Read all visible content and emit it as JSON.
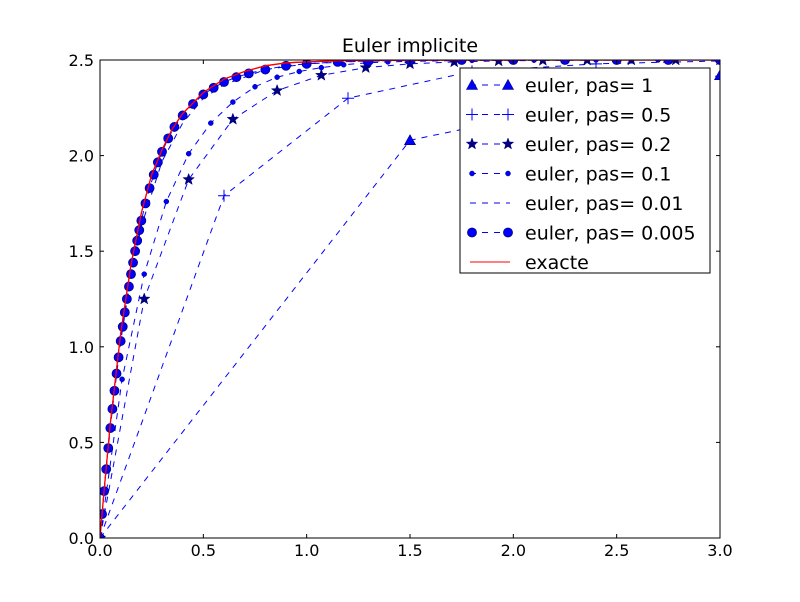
{
  "chart_data": {
    "type": "line",
    "title": "Euler implicite",
    "xlabel": "",
    "ylabel": "",
    "xlim": [
      0.0,
      3.0
    ],
    "ylim": [
      0.0,
      2.5
    ],
    "xticks": [
      "0.0",
      "0.5",
      "1.0",
      "1.5",
      "2.0",
      "2.5",
      "3.0"
    ],
    "yticks": [
      "0.0",
      "0.5",
      "1.0",
      "1.5",
      "2.0",
      "2.5"
    ],
    "grid": false,
    "legend_position": "upper-right",
    "colors": {
      "euler": "#0000ff",
      "exacte": "#ff0000",
      "dark_marker": "#000080"
    },
    "series": [
      {
        "name": "euler, pas= 1",
        "marker": "triangle",
        "linestyle": "dashed",
        "x": [
          0.0,
          1.5,
          3.0
        ],
        "y": [
          0.0,
          2.08,
          2.42
        ]
      },
      {
        "name": "euler, pas= 0.5",
        "marker": "plus",
        "linestyle": "dashed",
        "x": [
          0.0,
          0.6,
          1.2,
          1.8,
          2.4,
          3.0
        ],
        "y": [
          0.0,
          1.79,
          2.3,
          2.44,
          2.48,
          2.495
        ]
      },
      {
        "name": "euler, pas= 0.2",
        "marker": "star",
        "linestyle": "dashed",
        "x": [
          0.0,
          0.214,
          0.429,
          0.643,
          0.857,
          1.071,
          1.286,
          1.5,
          1.714,
          1.929,
          2.143,
          2.357,
          2.571,
          2.786,
          3.0
        ],
        "y": [
          0.0,
          1.25,
          1.875,
          2.19,
          2.34,
          2.42,
          2.46,
          2.48,
          2.49,
          2.495,
          2.498,
          2.499,
          2.5,
          2.5,
          2.5
        ]
      },
      {
        "name": "euler, pas= 0.1",
        "marker": "point",
        "linestyle": "dashed",
        "x": [
          0.0,
          0.107,
          0.214,
          0.321,
          0.429,
          0.536,
          0.643,
          0.75,
          0.857,
          0.964,
          1.071,
          1.179,
          1.286,
          1.393,
          1.5,
          1.8,
          2.1,
          2.4,
          2.7,
          3.0
        ],
        "y": [
          0.0,
          0.83,
          1.38,
          1.76,
          2.01,
          2.17,
          2.28,
          2.36,
          2.41,
          2.44,
          2.46,
          2.475,
          2.485,
          2.49,
          2.493,
          2.498,
          2.499,
          2.5,
          2.5,
          2.5
        ]
      },
      {
        "name": "euler, pas= 0.01",
        "marker": "none",
        "linestyle": "dashed",
        "x": [
          0.0,
          0.02,
          0.05,
          0.1,
          0.15,
          0.2,
          0.3,
          0.4,
          0.5,
          0.6,
          0.8,
          1.0,
          1.25,
          1.5,
          2.0,
          2.5,
          3.0
        ],
        "y": [
          0.0,
          0.25,
          0.59,
          1.03,
          1.37,
          1.63,
          1.97,
          2.17,
          2.3,
          2.37,
          2.45,
          2.48,
          2.493,
          2.497,
          2.5,
          2.5,
          2.5
        ]
      },
      {
        "name": "euler, pas= 0.005",
        "marker": "circle",
        "linestyle": "dashed",
        "x": [
          0.0,
          0.01,
          0.02,
          0.03,
          0.04,
          0.05,
          0.06,
          0.07,
          0.08,
          0.09,
          0.1,
          0.11,
          0.12,
          0.13,
          0.14,
          0.15,
          0.16,
          0.17,
          0.18,
          0.19,
          0.2,
          0.22,
          0.24,
          0.26,
          0.28,
          0.3,
          0.33,
          0.36,
          0.4,
          0.45,
          0.5,
          0.55,
          0.6,
          0.66,
          0.72,
          0.8,
          0.9,
          1.0,
          1.15,
          1.3,
          1.5,
          1.75,
          2.0,
          2.25,
          2.5,
          2.75,
          3.0
        ],
        "y": [
          0.0,
          0.125,
          0.245,
          0.36,
          0.47,
          0.575,
          0.675,
          0.77,
          0.86,
          0.945,
          1.03,
          1.105,
          1.18,
          1.25,
          1.315,
          1.38,
          1.44,
          1.5,
          1.555,
          1.61,
          1.66,
          1.75,
          1.83,
          1.9,
          1.965,
          2.02,
          2.09,
          2.15,
          2.21,
          2.27,
          2.32,
          2.355,
          2.385,
          2.41,
          2.43,
          2.45,
          2.47,
          2.48,
          2.49,
          2.495,
          2.498,
          2.5,
          2.5,
          2.5,
          2.5,
          2.5,
          2.5
        ]
      },
      {
        "name": "exacte",
        "marker": "none",
        "linestyle": "solid",
        "x": [
          0.0,
          0.02,
          0.05,
          0.1,
          0.15,
          0.2,
          0.25,
          0.3,
          0.35,
          0.4,
          0.5,
          0.6,
          0.7,
          0.8,
          0.9,
          1.0,
          1.2,
          1.5,
          2.0,
          2.5,
          3.0
        ],
        "y": [
          0.0,
          0.25,
          0.6,
          1.07,
          1.43,
          1.7,
          1.9,
          2.03,
          2.14,
          2.22,
          2.33,
          2.4,
          2.44,
          2.47,
          2.485,
          2.49,
          2.497,
          2.499,
          2.5,
          2.5,
          2.5
        ]
      }
    ]
  }
}
